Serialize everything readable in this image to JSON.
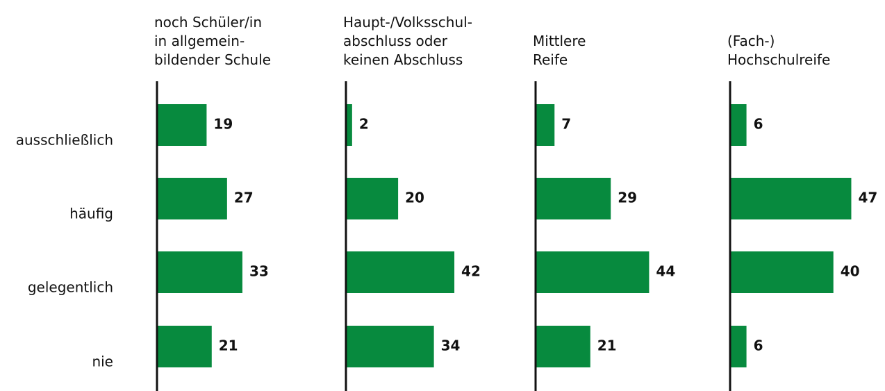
{
  "chart_data": {
    "type": "bar",
    "categories": [
      "ausschließlich",
      "häufig",
      "gelegentlich",
      "nie"
    ],
    "series": [
      {
        "name": "noch Schüler/in\nin allgemein-\nbildender Schule",
        "color": "#078a3e",
        "values": [
          19,
          27,
          33,
          21
        ]
      },
      {
        "name": "Haupt-/Volksschul-\nabschluss oder\nkeinen Abschluss",
        "color": "#078a3e",
        "values": [
          2,
          20,
          42,
          34
        ]
      },
      {
        "name": "Mittlere\nReife",
        "color": "#078a3e",
        "values": [
          7,
          29,
          44,
          21
        ]
      },
      {
        "name": "(Fach-)\nHochschulreife",
        "color": "#078a3e",
        "values": [
          6,
          47,
          40,
          6
        ]
      }
    ]
  }
}
